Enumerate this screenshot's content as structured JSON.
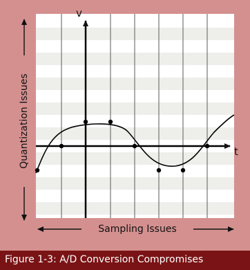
{
  "figure": {
    "caption": "Figure 1-3: A/D Conversion Compromises",
    "vertical_axis_label": "v",
    "horizontal_axis_label": "t",
    "left_side_label": "Quantization Issues",
    "bottom_label": "Sampling Issues"
  },
  "colors": {
    "frame": "#d4908f",
    "plot_band_light": "#ffffff",
    "plot_band_shaded": "#eeeeea",
    "grid_lines": "#5a5a5a",
    "axes": "#000000",
    "caption_bar": "#7a1315",
    "caption_text": "#ffffff"
  },
  "icons": [
    "arrow-up-icon",
    "arrow-right-icon",
    "arrow-left-icon",
    "arrow-down-icon"
  ]
}
